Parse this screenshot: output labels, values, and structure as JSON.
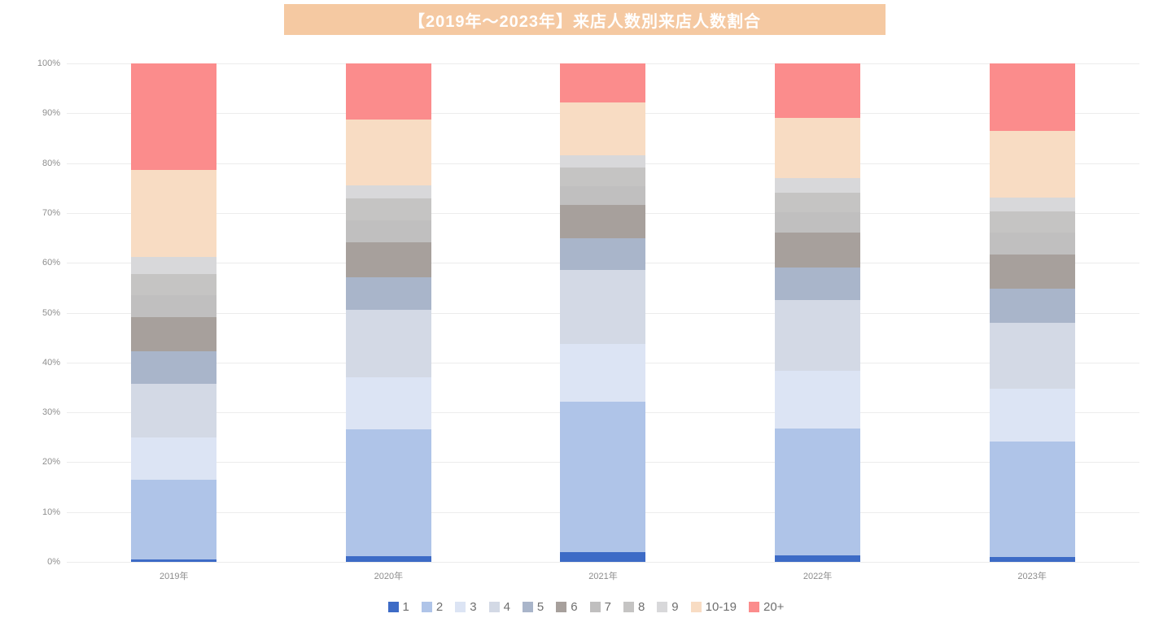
{
  "banner": {
    "bg": "#F5C9A2",
    "text_color": "#FFFFFF"
  },
  "chart_data": {
    "type": "bar",
    "stacked": true,
    "stack_mode": "percent",
    "title": "【2019年〜2023年】来店人数別来店人数割合",
    "xlabel": "",
    "ylabel": "",
    "ylim": [
      0,
      100
    ],
    "grid": true,
    "legend_position": "bottom",
    "categories": [
      "2019年",
      "2020年",
      "2021年",
      "2022年",
      "2023年"
    ],
    "y_ticks": [
      "0%",
      "10%",
      "20%",
      "30%",
      "40%",
      "50%",
      "60%",
      "70%",
      "80%",
      "90%",
      "100%"
    ],
    "series": [
      {
        "name": "1",
        "color": "#3D6BC6",
        "values": [
          0.5,
          1.1,
          2.0,
          1.3,
          0.9
        ]
      },
      {
        "name": "2",
        "color": "#AFC4E8",
        "values": [
          16.0,
          25.5,
          30.1,
          25.5,
          23.2
        ]
      },
      {
        "name": "3",
        "color": "#DCE4F4",
        "values": [
          8.5,
          10.5,
          11.7,
          11.5,
          10.7
        ]
      },
      {
        "name": "4",
        "color": "#D3D9E5",
        "values": [
          10.7,
          13.4,
          14.7,
          14.2,
          13.2
        ]
      },
      {
        "name": "5",
        "color": "#A9B5CA",
        "values": [
          6.5,
          6.6,
          6.4,
          6.5,
          6.9
        ]
      },
      {
        "name": "6",
        "color": "#A7A09C",
        "values": [
          6.9,
          7.0,
          6.8,
          7.1,
          6.8
        ]
      },
      {
        "name": "7",
        "color": "#C0BFBF",
        "values": [
          4.4,
          4.4,
          3.7,
          4.0,
          4.4
        ]
      },
      {
        "name": "8",
        "color": "#C5C4C3",
        "values": [
          4.3,
          4.4,
          3.7,
          4.0,
          4.3
        ]
      },
      {
        "name": "9",
        "color": "#D8D8DA",
        "values": [
          3.4,
          2.6,
          2.4,
          2.9,
          2.7
        ]
      },
      {
        "name": "10-19",
        "color": "#F8DCC3",
        "values": [
          17.4,
          13.3,
          10.7,
          12.1,
          13.4
        ]
      },
      {
        "name": "20+",
        "color": "#FB8C8C",
        "values": [
          21.4,
          11.2,
          7.8,
          10.9,
          13.5
        ]
      }
    ]
  }
}
